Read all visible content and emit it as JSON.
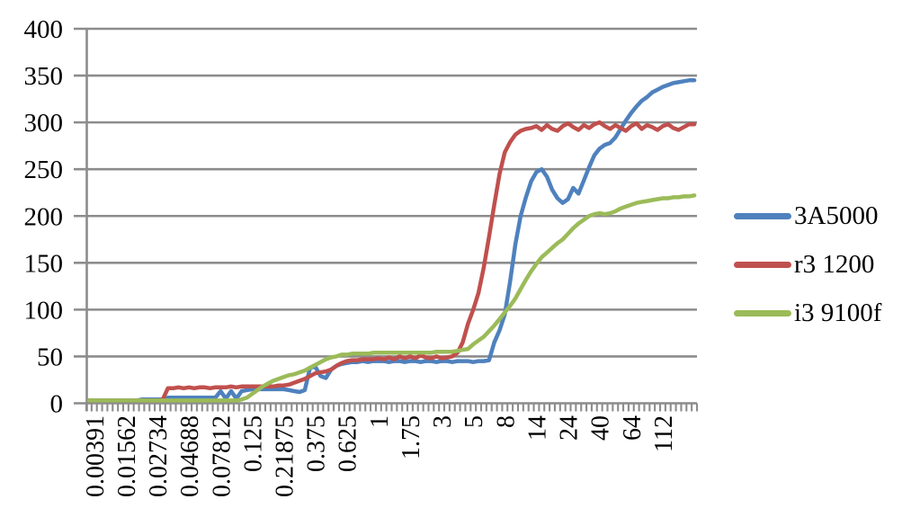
{
  "chart": {
    "background": "#FFFFFF",
    "axis_color": "#8C8C8C",
    "text_color": "#000000"
  },
  "chart_data": {
    "type": "line",
    "title": "",
    "xlabel": "",
    "ylabel": "",
    "ylim": [
      0,
      400
    ],
    "y_ticks": [
      0,
      50,
      100,
      150,
      200,
      250,
      300,
      350,
      400
    ],
    "x_tick_labels": [
      "0.00391",
      "0.01562",
      "0.02734",
      "0.04688",
      "0.07812",
      "0.125",
      "0.21875",
      "0.375",
      "0.625",
      "1",
      "1.75",
      "3",
      "5",
      "8",
      "14",
      "24",
      "40",
      "64",
      "112"
    ],
    "x_label_start_index": 1,
    "x_label_every": 6,
    "grid": true,
    "legend_position": "right",
    "series": [
      {
        "name": "3A5000",
        "color": "#4F81BD",
        "values": [
          3,
          3,
          3,
          3,
          3,
          3,
          3,
          3,
          3,
          3,
          4,
          4,
          4,
          4,
          4,
          6,
          6,
          6,
          6,
          6,
          6,
          6,
          6,
          6,
          6,
          13,
          5,
          13,
          5,
          13,
          14,
          15,
          15,
          15,
          15,
          15,
          15,
          15,
          14,
          13,
          12,
          14,
          38,
          39,
          29,
          27,
          36,
          40,
          42,
          43,
          44,
          44,
          45,
          44,
          45,
          45,
          45,
          44,
          45,
          45,
          44,
          45,
          45,
          44,
          45,
          45,
          44,
          45,
          45,
          44,
          45,
          45,
          45,
          44,
          45,
          45,
          46,
          65,
          78,
          95,
          130,
          170,
          200,
          220,
          237,
          247,
          250,
          242,
          228,
          219,
          214,
          218,
          230,
          224,
          238,
          252,
          265,
          272,
          276,
          278,
          284,
          293,
          302,
          310,
          317,
          323,
          327,
          332,
          335,
          338,
          340,
          342,
          343,
          344,
          345,
          345
        ]
      },
      {
        "name": "r3 1200",
        "color": "#C0504D",
        "values": [
          3,
          3,
          3,
          3,
          3,
          3,
          3,
          3,
          3,
          3,
          3,
          3,
          3,
          3,
          4,
          16,
          16,
          17,
          16,
          17,
          16,
          17,
          17,
          16,
          17,
          17,
          17,
          18,
          17,
          18,
          18,
          18,
          18,
          18,
          18,
          18,
          19,
          19,
          20,
          22,
          24,
          26,
          29,
          32,
          33,
          34,
          36,
          40,
          43,
          45,
          46,
          46,
          47,
          47,
          47,
          48,
          47,
          49,
          47,
          50,
          48,
          50,
          48,
          51,
          49,
          48,
          50,
          48,
          49,
          50,
          54,
          65,
          85,
          100,
          118,
          145,
          178,
          212,
          245,
          268,
          279,
          287,
          291,
          293,
          294,
          296,
          292,
          297,
          293,
          291,
          296,
          299,
          295,
          292,
          297,
          294,
          298,
          300,
          296,
          293,
          297,
          294,
          291,
          296,
          299,
          293,
          297,
          295,
          292,
          296,
          298,
          294,
          292,
          295,
          298,
          298
        ]
      },
      {
        "name": "i3 9100f",
        "color": "#9BBB59",
        "values": [
          3,
          3,
          3,
          3,
          3,
          3,
          3,
          3,
          3,
          3,
          3,
          3,
          3,
          3,
          3,
          3,
          3,
          3,
          3,
          3,
          3,
          3,
          3,
          3,
          3,
          3,
          3,
          3,
          3,
          4,
          6,
          10,
          14,
          18,
          21,
          24,
          26,
          28,
          30,
          31,
          33,
          35,
          38,
          41,
          44,
          47,
          49,
          50,
          52,
          52,
          53,
          53,
          53,
          53,
          54,
          54,
          54,
          54,
          54,
          54,
          54,
          54,
          54,
          54,
          54,
          54,
          55,
          55,
          55,
          55,
          56,
          57,
          58,
          63,
          67,
          71,
          77,
          83,
          90,
          97,
          104,
          112,
          122,
          132,
          141,
          149,
          156,
          161,
          166,
          171,
          175,
          181,
          187,
          192,
          196,
          200,
          202,
          203,
          202,
          203,
          205,
          208,
          210,
          212,
          214,
          215,
          216,
          217,
          218,
          219,
          219,
          220,
          220,
          221,
          221,
          222
        ]
      }
    ]
  }
}
